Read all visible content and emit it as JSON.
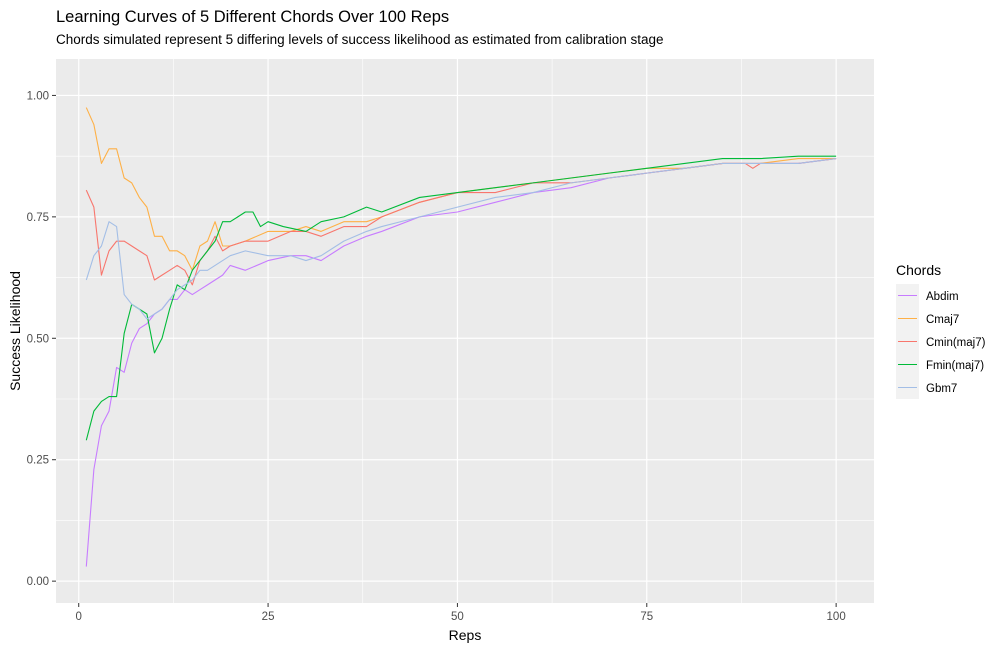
{
  "chart_data": {
    "type": "line",
    "title": "Learning Curves of 5 Different Chords Over 100 Reps",
    "subtitle": "Chords simulated represent 5 differing levels of success likelihood as estimated from calibration stage",
    "xlabel": "Reps",
    "ylabel": "Success Likelihood",
    "xlim": [
      -3,
      105
    ],
    "ylim": [
      -0.045,
      1.075
    ],
    "x_ticks": [
      0,
      25,
      50,
      75,
      100
    ],
    "x_tick_labels": [
      "0",
      "25",
      "50",
      "75",
      "100"
    ],
    "y_ticks": [
      0,
      0.25,
      0.5,
      0.75,
      1.0
    ],
    "y_tick_labels": [
      "0.00",
      "0.25",
      "0.50",
      "0.75",
      "1.00"
    ],
    "grid": true,
    "legend": {
      "title": "Chords",
      "position": "right",
      "entries": [
        "Abdim",
        "Cmaj7",
        "Cmin(maj7)",
        "Fmin(maj7)",
        "Gbm7"
      ]
    },
    "series": [
      {
        "name": "Abdim",
        "color": "#C77CFF",
        "x": [
          1,
          2,
          3,
          4,
          5,
          6,
          7,
          8,
          9,
          10,
          11,
          12,
          13,
          14,
          15,
          16,
          17,
          18,
          19,
          20,
          22,
          25,
          28,
          30,
          32,
          35,
          38,
          40,
          45,
          50,
          55,
          60,
          65,
          70,
          75,
          80,
          85,
          90,
          95,
          100
        ],
        "y": [
          0.03,
          0.23,
          0.32,
          0.35,
          0.44,
          0.43,
          0.49,
          0.52,
          0.53,
          0.55,
          0.56,
          0.58,
          0.58,
          0.6,
          0.59,
          0.6,
          0.61,
          0.62,
          0.63,
          0.65,
          0.64,
          0.66,
          0.67,
          0.67,
          0.66,
          0.69,
          0.71,
          0.72,
          0.75,
          0.76,
          0.78,
          0.8,
          0.81,
          0.83,
          0.84,
          0.85,
          0.86,
          0.86,
          0.86,
          0.87
        ]
      },
      {
        "name": "Cmaj7",
        "color": "#FEB046",
        "x": [
          1,
          2,
          3,
          4,
          5,
          6,
          7,
          8,
          9,
          10,
          11,
          12,
          13,
          14,
          15,
          16,
          17,
          18,
          19,
          20,
          22,
          25,
          28,
          30,
          32,
          35,
          38,
          40,
          45,
          50,
          55,
          60,
          65,
          70,
          75,
          80,
          85,
          90,
          95,
          100
        ],
        "y": [
          0.975,
          0.94,
          0.86,
          0.89,
          0.89,
          0.83,
          0.82,
          0.79,
          0.77,
          0.71,
          0.71,
          0.68,
          0.68,
          0.67,
          0.64,
          0.69,
          0.7,
          0.74,
          0.69,
          0.69,
          0.7,
          0.72,
          0.72,
          0.73,
          0.72,
          0.74,
          0.74,
          0.75,
          0.78,
          0.8,
          0.81,
          0.82,
          0.83,
          0.84,
          0.85,
          0.85,
          0.86,
          0.86,
          0.87,
          0.87
        ]
      },
      {
        "name": "Cmin(maj7)",
        "color": "#F8766D",
        "x": [
          1,
          2,
          3,
          4,
          5,
          6,
          7,
          8,
          9,
          10,
          11,
          12,
          13,
          14,
          15,
          16,
          17,
          18,
          19,
          20,
          22,
          25,
          28,
          30,
          32,
          35,
          38,
          40,
          45,
          50,
          55,
          60,
          65,
          70,
          75,
          80,
          85,
          88,
          89,
          90,
          95,
          100
        ],
        "y": [
          0.805,
          0.77,
          0.63,
          0.68,
          0.7,
          0.7,
          0.69,
          0.68,
          0.67,
          0.62,
          0.63,
          0.64,
          0.65,
          0.64,
          0.61,
          0.66,
          0.68,
          0.71,
          0.68,
          0.69,
          0.7,
          0.7,
          0.72,
          0.72,
          0.71,
          0.73,
          0.73,
          0.75,
          0.78,
          0.8,
          0.8,
          0.82,
          0.82,
          0.83,
          0.84,
          0.85,
          0.86,
          0.86,
          0.85,
          0.86,
          0.86,
          0.87
        ]
      },
      {
        "name": "Fmin(maj7)",
        "color": "#00BA38",
        "x": [
          1,
          2,
          3,
          4,
          5,
          6,
          7,
          8,
          9,
          10,
          11,
          12,
          13,
          14,
          15,
          16,
          17,
          18,
          19,
          20,
          21,
          22,
          23,
          24,
          25,
          27,
          30,
          32,
          35,
          38,
          40,
          45,
          50,
          55,
          60,
          65,
          70,
          75,
          80,
          85,
          90,
          95,
          100
        ],
        "y": [
          0.29,
          0.35,
          0.37,
          0.38,
          0.38,
          0.51,
          0.57,
          0.56,
          0.55,
          0.47,
          0.5,
          0.56,
          0.61,
          0.6,
          0.64,
          0.66,
          0.68,
          0.7,
          0.74,
          0.74,
          0.75,
          0.76,
          0.76,
          0.73,
          0.74,
          0.73,
          0.72,
          0.74,
          0.75,
          0.77,
          0.76,
          0.79,
          0.8,
          0.81,
          0.82,
          0.83,
          0.84,
          0.85,
          0.86,
          0.87,
          0.87,
          0.875,
          0.875
        ]
      },
      {
        "name": "Gbm7",
        "color": "#A3BEE6",
        "x": [
          1,
          2,
          3,
          4,
          5,
          6,
          7,
          8,
          9,
          10,
          11,
          12,
          13,
          14,
          15,
          16,
          17,
          18,
          19,
          20,
          22,
          25,
          28,
          30,
          32,
          35,
          38,
          40,
          45,
          50,
          55,
          60,
          65,
          70,
          75,
          80,
          85,
          90,
          95,
          100
        ],
        "y": [
          0.62,
          0.67,
          0.69,
          0.74,
          0.73,
          0.59,
          0.57,
          0.56,
          0.54,
          0.55,
          0.56,
          0.58,
          0.6,
          0.61,
          0.62,
          0.64,
          0.64,
          0.65,
          0.66,
          0.67,
          0.68,
          0.67,
          0.67,
          0.66,
          0.67,
          0.7,
          0.72,
          0.73,
          0.75,
          0.77,
          0.79,
          0.8,
          0.82,
          0.83,
          0.84,
          0.85,
          0.86,
          0.86,
          0.86,
          0.87
        ]
      }
    ]
  }
}
